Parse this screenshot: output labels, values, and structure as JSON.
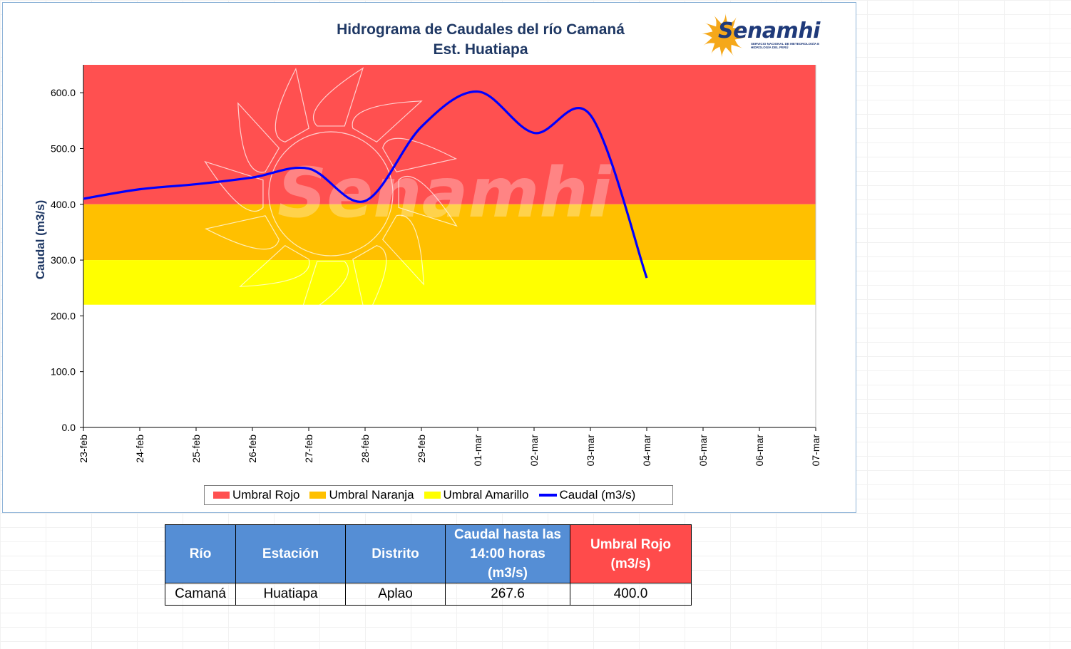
{
  "logo": {
    "name": "Senamhi",
    "subtitle": "SERVICIO NACIONAL DE METEOROLOGÍA E HIDROLOGÍA DEL PERÚ",
    "watermark": "Senamhi"
  },
  "colors": {
    "umbral_rojo": "#ff5050",
    "umbral_naranja": "#ffc000",
    "umbral_amarillo": "#ffff00",
    "caudal": "#0000ff",
    "table_header_blue": "#558ed5",
    "table_header_red": "#ff4b4b",
    "title": "#1f3864"
  },
  "chart_data": {
    "type": "line",
    "title": "Hidrograma de Caudales del río Camaná",
    "subtitle": "Est. Huatiapa",
    "xlabel": "",
    "ylabel": "Caudal (m3/s)",
    "ylim": [
      0,
      650
    ],
    "yticks": [
      "0.0",
      "100.0",
      "200.0",
      "300.0",
      "400.0",
      "500.0",
      "600.0"
    ],
    "categories": [
      "23-feb",
      "24-feb",
      "25-feb",
      "26-feb",
      "27-feb",
      "28-feb",
      "29-feb",
      "01-mar",
      "02-mar",
      "03-mar",
      "04-mar",
      "05-mar",
      "06-mar",
      "07-mar"
    ],
    "bands": [
      {
        "name": "Umbral Rojo",
        "from": 400,
        "to": 650,
        "color": "#ff5050"
      },
      {
        "name": "Umbral Naranja",
        "from": 300,
        "to": 400,
        "color": "#ffc000"
      },
      {
        "name": "Umbral Amarillo",
        "from": 220,
        "to": 300,
        "color": "#ffff00"
      }
    ],
    "series": [
      {
        "name": "Caudal (m3/s)",
        "x": [
          0,
          1,
          2,
          3,
          4,
          5,
          6,
          7,
          8,
          9,
          10
        ],
        "values": [
          410,
          427,
          436,
          448,
          464,
          406,
          539,
          602,
          528,
          560,
          268
        ]
      }
    ],
    "grid": false,
    "legend": "bottom"
  },
  "table": {
    "headers": [
      "Río",
      "Estación",
      "Distrito",
      "Caudal hasta las 14:00 horas (m3/s)",
      "Umbral  Rojo (m3/s)"
    ],
    "row": [
      "Camaná",
      "Huatiapa",
      "Aplao",
      "267.6",
      "400.0"
    ]
  }
}
